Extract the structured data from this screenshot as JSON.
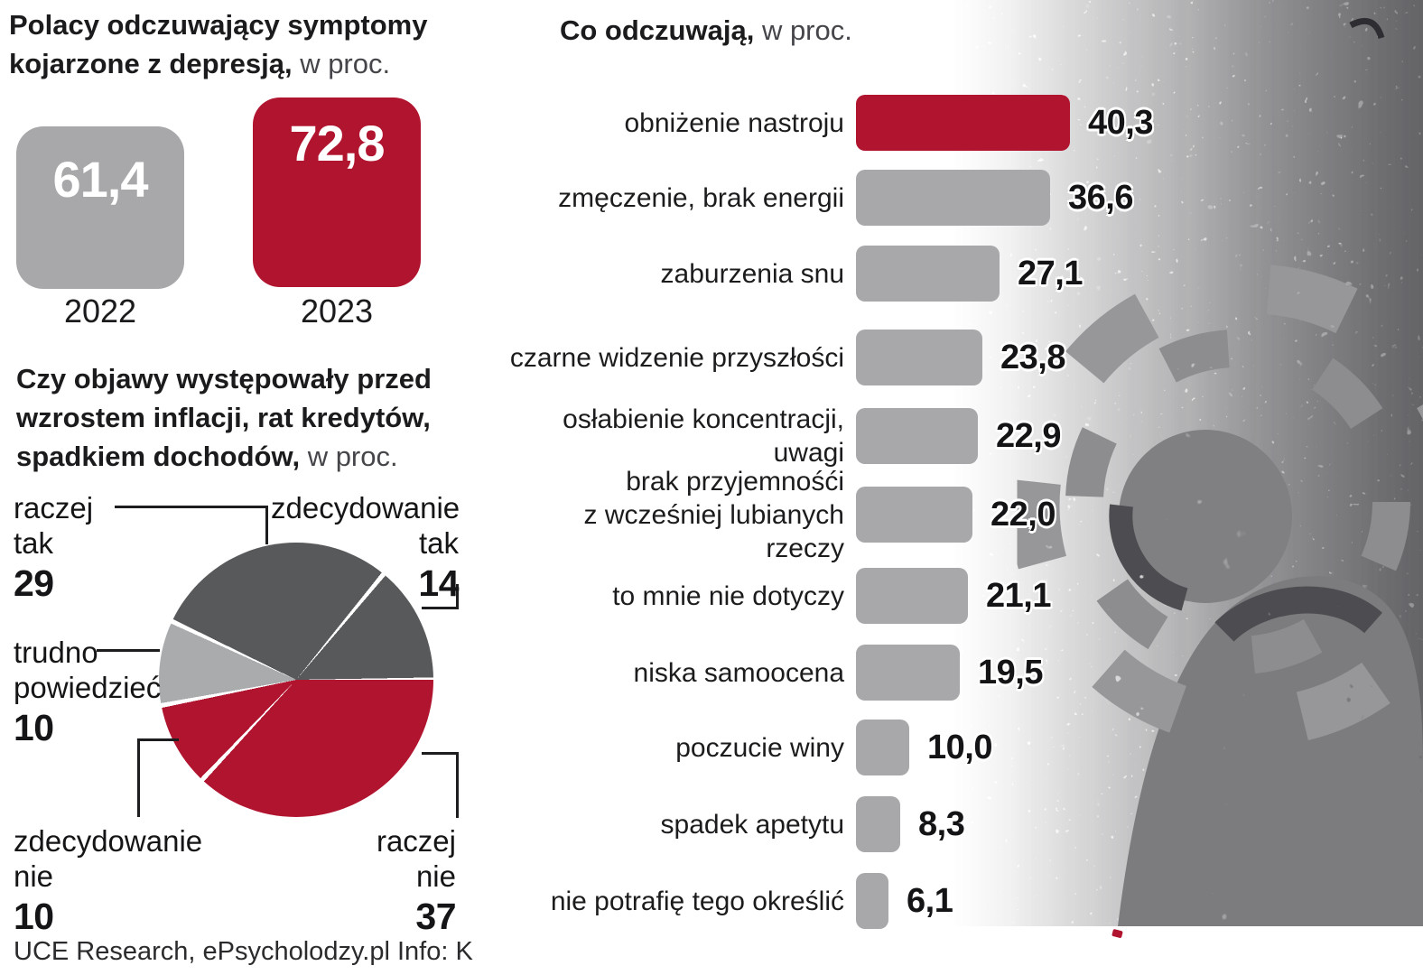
{
  "unit_label": "w proc.",
  "colors": {
    "red": "#b1142f",
    "bar_gray": "#a8a8aa",
    "dark_slice": "#58595b",
    "light_slice": "#a9abad"
  },
  "source": "UCE Research, ePsycholodzy.pl  Info: K",
  "charts": {
    "squares": {
      "title_line1": "Polacy odczuwający symptomy",
      "title_line2_bold": "kojarzone z depresją,",
      "items": [
        {
          "year": "2022",
          "value": "61,4",
          "color": "#a8a8aa"
        },
        {
          "year": "2023",
          "value": "72,8",
          "color": "#b1142f"
        }
      ]
    },
    "pie": {
      "title_line1": "Czy objawy występowały przed",
      "title_line2": "wzrostem inflacji, rat kredytów,",
      "title_line3_bold": "spadkiem dochodów,",
      "slices": [
        {
          "label": "raczej nie",
          "pct": 37,
          "color": "#b1142f"
        },
        {
          "label": "zdecydowanie nie",
          "pct": 10,
          "color": "#b1142f"
        },
        {
          "label": "trudno powiedzieć",
          "pct": 10,
          "color": "#a9abad"
        },
        {
          "label": "raczej tak",
          "pct": 29,
          "color": "#58595b"
        },
        {
          "label": "zdecydowanie tak",
          "pct": 14,
          "color": "#58595b"
        }
      ],
      "labels": {
        "raczej_tak": {
          "line1": "raczej",
          "line2": "tak",
          "value": "29"
        },
        "zdecydowanie_tak": {
          "line1": "zdecydowanie",
          "line2": "tak",
          "value": "14"
        },
        "trudno": {
          "line1": "trudno",
          "line2": "powiedzieć",
          "value": "10"
        },
        "zdecydowanie_nie": {
          "line1": "zdecydowanie",
          "line2": "nie",
          "value": "10"
        },
        "raczej_nie": {
          "line1": "raczej",
          "line2": "nie",
          "value": "37"
        }
      }
    },
    "bars": {
      "title_bold": "Co odczuwają,",
      "rows": [
        {
          "label1": "obniżenie nastroju",
          "label2": "",
          "value": "40,3",
          "num": 40.3,
          "highlight": true
        },
        {
          "label1": "zmęczenie, brak energii",
          "label2": "",
          "value": "36,6",
          "num": 36.6,
          "highlight": false
        },
        {
          "label1": "zaburzenia snu",
          "label2": "",
          "value": "27,1",
          "num": 27.1,
          "highlight": false
        },
        {
          "label1": "czarne widzenie przyszłości",
          "label2": "",
          "value": "23,8",
          "num": 23.8,
          "highlight": false
        },
        {
          "label1": "osłabienie koncentracji,",
          "label2": "uwagi",
          "value": "22,9",
          "num": 22.9,
          "highlight": false
        },
        {
          "label1": "brak przyjemnośći",
          "label2": "z wcześniej lubianych rzeczy",
          "value": "22,0",
          "num": 22.0,
          "highlight": false
        },
        {
          "label1": "to mnie nie dotyczy",
          "label2": "",
          "value": "21,1",
          "num": 21.1,
          "highlight": false
        },
        {
          "label1": "niska samoocena",
          "label2": "",
          "value": "19,5",
          "num": 19.5,
          "highlight": false
        },
        {
          "label1": "poczucie winy",
          "label2": "",
          "value": "10,0",
          "num": 10.0,
          "highlight": false
        },
        {
          "label1": "spadek apetytu",
          "label2": "",
          "value": "8,3",
          "num": 8.3,
          "highlight": false
        },
        {
          "label1": "nie potrafię tego określić",
          "label2": "",
          "value": "6,1",
          "num": 6.1,
          "highlight": false
        }
      ]
    }
  },
  "chart_data": [
    {
      "type": "bar",
      "title": "Polacy odczuwający symptomy kojarzone z depresją, w proc.",
      "categories": [
        "2022",
        "2023"
      ],
      "values": [
        61.4,
        72.8
      ],
      "colors": [
        "#a8a8aa",
        "#b1142f"
      ]
    },
    {
      "type": "pie",
      "title": "Czy objawy występowały przed wzrostem inflacji, rat kredytów, spadkiem dochodów, w proc.",
      "labels": [
        "zdecydowanie tak",
        "raczej tak",
        "trudno powiedzieć",
        "zdecydowanie nie",
        "raczej nie"
      ],
      "values": [
        14,
        29,
        10,
        10,
        37
      ],
      "colors": [
        "#58595b",
        "#58595b",
        "#a9abad",
        "#b1142f",
        "#b1142f"
      ]
    },
    {
      "type": "bar",
      "orientation": "horizontal",
      "title": "Co odczuwają, w proc.",
      "categories": [
        "obniżenie nastroju",
        "zmęczenie, brak energii",
        "zaburzenia snu",
        "czarne widzenie przyszłości",
        "osłabienie koncentracji, uwagi",
        "brak przyjemnośći z wcześniej lubianych rzeczy",
        "to mnie nie dotyczy",
        "niska samoocena",
        "poczucie winy",
        "spadek apetytu",
        "nie potrafię tego określić"
      ],
      "values": [
        40.3,
        36.6,
        27.1,
        23.8,
        22.9,
        22.0,
        21.1,
        19.5,
        10.0,
        8.3,
        6.1
      ],
      "xlim": [
        0,
        41
      ],
      "highlight_index": 0,
      "highlight_color": "#b1142f",
      "bar_color": "#a8a8aa"
    }
  ]
}
